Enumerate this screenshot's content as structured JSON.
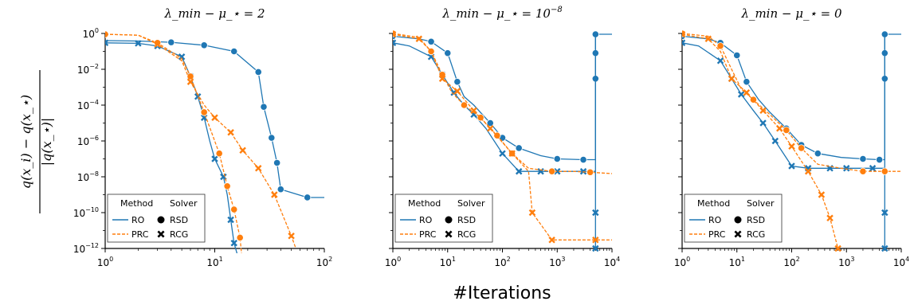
{
  "figure": {
    "xlabel": "#Iterations",
    "ylabel": {
      "numerator": "q(x_i) − q(x_⋆)",
      "denominator": "|q(x_⋆)|"
    }
  },
  "colors": {
    "RO": "#1f77b4",
    "PRC": "#ff7f0e"
  },
  "legend": {
    "method_header": "Method",
    "solver_header": "Solver",
    "methods": [
      "RO",
      "PRC"
    ],
    "solvers": [
      "RSD",
      "RCG"
    ],
    "placement": "lower-left"
  },
  "chart_data": [
    {
      "type": "line",
      "title": "λ_min − μ_⋆ = 2",
      "xscale": "log",
      "yscale": "log",
      "xlim": [
        1,
        100
      ],
      "ylim": [
        1e-12,
        1
      ],
      "xticks": [
        "10^0",
        "10^1",
        "10^2"
      ],
      "yticks": [
        "10^0",
        "10^-2",
        "10^-4",
        "10^-6",
        "10^-8",
        "10^-10",
        "10^-12"
      ],
      "series": [
        {
          "method": "RO",
          "solver": "RSD",
          "x": [
            1,
            2,
            4,
            8,
            15,
            25,
            28,
            33,
            37,
            40,
            70,
            100
          ],
          "y": [
            0.4,
            0.38,
            0.32,
            0.22,
            0.1,
            0.007,
            8e-05,
            1.5e-06,
            6e-08,
            2e-09,
            7e-10,
            7e-10
          ],
          "markers": [
            [
              4,
              0.32
            ],
            [
              8,
              0.22
            ],
            [
              15,
              0.1
            ],
            [
              25,
              0.007
            ],
            [
              28,
              8e-05
            ],
            [
              33,
              1.5e-06
            ],
            [
              37,
              6e-08
            ],
            [
              40,
              2e-09
            ],
            [
              70,
              7e-10
            ]
          ]
        },
        {
          "method": "RO",
          "solver": "RCG",
          "x": [
            1,
            2,
            3,
            5,
            6,
            7,
            8,
            9,
            10,
            12,
            13,
            14,
            15,
            16
          ],
          "y": [
            0.3,
            0.28,
            0.2,
            0.05,
            0.004,
            0.0003,
            2e-05,
            1e-06,
            1e-07,
            1e-08,
            1e-09,
            4e-11,
            2e-12,
            5e-13
          ],
          "markers": [
            [
              1,
              0.3
            ],
            [
              2,
              0.28
            ],
            [
              3,
              0.2
            ],
            [
              5,
              0.05
            ],
            [
              6,
              0.004
            ],
            [
              7,
              0.0003
            ],
            [
              8,
              2e-05
            ],
            [
              10,
              1e-07
            ],
            [
              12,
              1e-08
            ],
            [
              14,
              4e-11
            ],
            [
              15,
              2e-12
            ]
          ]
        },
        {
          "method": "PRC",
          "solver": "RSD",
          "x": [
            1,
            2,
            3,
            5,
            6,
            8,
            11,
            13,
            15,
            17,
            18
          ],
          "y": [
            0.9,
            0.8,
            0.3,
            0.04,
            0.004,
            4e-05,
            2e-07,
            3e-09,
            1.5e-10,
            4e-12,
            1e-13
          ],
          "markers": [
            [
              1,
              0.9
            ],
            [
              3,
              0.3
            ],
            [
              6,
              0.004
            ],
            [
              8,
              4e-05
            ],
            [
              11,
              2e-07
            ],
            [
              13,
              3e-09
            ],
            [
              15,
              1.5e-10
            ],
            [
              17,
              4e-12
            ]
          ]
        },
        {
          "method": "PRC",
          "solver": "RCG",
          "x": [
            1,
            2,
            3,
            5,
            6,
            8,
            10,
            14,
            18,
            25,
            35,
            50,
            55
          ],
          "y": [
            0.9,
            0.8,
            0.25,
            0.03,
            0.002,
            0.0001,
            2e-05,
            3e-06,
            3e-07,
            3e-08,
            1e-09,
            5e-12,
            1e-12
          ],
          "markers": [
            [
              3,
              0.25
            ],
            [
              6,
              0.002
            ],
            [
              10,
              2e-05
            ],
            [
              14,
              3e-06
            ],
            [
              18,
              3e-07
            ],
            [
              25,
              3e-08
            ],
            [
              35,
              1e-09
            ],
            [
              50,
              5e-12
            ]
          ]
        }
      ]
    },
    {
      "type": "line",
      "title": "λ_min − μ_⋆ = 10^-8",
      "xscale": "log",
      "yscale": "log",
      "xlim": [
        1,
        10000
      ],
      "ylim": [
        1e-12,
        1
      ],
      "xticks": [
        "10^0",
        "10^1",
        "10^2",
        "10^3",
        "10^4"
      ],
      "series": [
        {
          "method": "RO",
          "solver": "RSD",
          "x": [
            1,
            3,
            5,
            10,
            15,
            20,
            30,
            60,
            100,
            200,
            500,
            1000,
            3000,
            5000,
            5000,
            5000,
            5000,
            5000,
            5000,
            10000
          ],
          "y": [
            0.7,
            0.5,
            0.35,
            0.08,
            0.002,
            0.0003,
            0.0001,
            1e-05,
            1.5e-06,
            4e-07,
            1.5e-07,
            1e-07,
            9e-08,
            9e-08,
            0.003,
            0.08,
            0.2,
            0.5,
            0.9,
            0.9
          ],
          "markers": [
            [
              1,
              0.7
            ],
            [
              5,
              0.35
            ],
            [
              10,
              0.08
            ],
            [
              15,
              0.002
            ],
            [
              60,
              1e-05
            ],
            [
              100,
              1.5e-06
            ],
            [
              200,
              4e-07
            ],
            [
              1000,
              1e-07
            ],
            [
              3000,
              9e-08
            ],
            [
              5000,
              0.003
            ],
            [
              5000,
              0.08
            ],
            [
              5000,
              0.9
            ]
          ]
        },
        {
          "method": "RO",
          "solver": "RCG",
          "x": [
            1,
            2,
            5,
            8,
            13,
            20,
            30,
            50,
            100,
            200,
            500,
            1000,
            3000,
            5000,
            5000,
            5000,
            5000,
            5000,
            5000
          ],
          "y": [
            0.3,
            0.2,
            0.05,
            0.005,
            0.0005,
            0.0001,
            3e-05,
            5e-06,
            2e-07,
            2e-08,
            2e-08,
            2e-08,
            2e-08,
            2e-08,
            1e-10,
            1e-12,
            0.001,
            0.1,
            1
          ],
          "markers": [
            [
              1,
              0.3
            ],
            [
              5,
              0.05
            ],
            [
              8,
              0.005
            ],
            [
              13,
              0.0005
            ],
            [
              30,
              3e-05
            ],
            [
              100,
              2e-07
            ],
            [
              200,
              2e-08
            ],
            [
              500,
              2e-08
            ],
            [
              1000,
              2e-08
            ],
            [
              3000,
              2e-08
            ],
            [
              5000,
              1e-10
            ],
            [
              5000,
              1e-12
            ]
          ]
        },
        {
          "method": "PRC",
          "solver": "RSD",
          "x": [
            1,
            3,
            5,
            8,
            12,
            20,
            40,
            80,
            150,
            300,
            800,
            2000,
            4000,
            10000
          ],
          "y": [
            1,
            0.6,
            0.1,
            0.005,
            0.0005,
            0.0001,
            2e-05,
            2e-06,
            2e-07,
            3e-08,
            2e-08,
            2e-08,
            1.8e-08,
            1.5e-08
          ],
          "markers": [
            [
              1,
              1
            ],
            [
              5,
              0.1
            ],
            [
              8,
              0.005
            ],
            [
              20,
              0.0001
            ],
            [
              40,
              2e-05
            ],
            [
              80,
              2e-06
            ],
            [
              150,
              2e-07
            ],
            [
              800,
              2e-08
            ],
            [
              4000,
              1.8e-08
            ]
          ]
        },
        {
          "method": "PRC",
          "solver": "RCG",
          "x": [
            1,
            3,
            5,
            8,
            15,
            30,
            60,
            150,
            300,
            350,
            800,
            5000,
            10000
          ],
          "y": [
            0.9,
            0.5,
            0.1,
            0.003,
            0.0006,
            5e-05,
            5e-06,
            2e-07,
            2e-08,
            1e-10,
            3e-12,
            3e-12,
            3e-12
          ],
          "markers": [
            [
              1,
              0.9
            ],
            [
              3,
              0.5
            ],
            [
              8,
              0.003
            ],
            [
              15,
              0.0006
            ],
            [
              30,
              5e-05
            ],
            [
              60,
              5e-06
            ],
            [
              150,
              2e-07
            ],
            [
              350,
              1e-10
            ],
            [
              800,
              3e-12
            ],
            [
              5000,
              3e-12
            ]
          ]
        }
      ]
    },
    {
      "type": "line",
      "title": "λ_min − μ_⋆ = 0",
      "xscale": "log",
      "yscale": "log",
      "xlim": [
        1,
        10000
      ],
      "ylim": [
        1e-12,
        1
      ],
      "xticks": [
        "10^0",
        "10^1",
        "10^2",
        "10^3",
        "10^4"
      ],
      "series": [
        {
          "method": "RO",
          "solver": "RSD",
          "x": [
            1,
            3,
            5,
            10,
            15,
            25,
            40,
            80,
            150,
            300,
            800,
            2000,
            4000,
            5000,
            5000,
            5000,
            5000,
            5000,
            10000
          ],
          "y": [
            0.7,
            0.5,
            0.3,
            0.06,
            0.002,
            0.0002,
            4e-05,
            5e-06,
            6e-07,
            2e-07,
            1.2e-07,
            1e-07,
            9e-08,
            9e-08,
            0.003,
            0.08,
            0.3,
            0.9,
            0.9
          ],
          "markers": [
            [
              1,
              0.7
            ],
            [
              5,
              0.3
            ],
            [
              10,
              0.06
            ],
            [
              15,
              0.002
            ],
            [
              80,
              5e-06
            ],
            [
              150,
              6e-07
            ],
            [
              300,
              2e-07
            ],
            [
              2000,
              1e-07
            ],
            [
              4000,
              9e-08
            ],
            [
              5000,
              0.003
            ],
            [
              5000,
              0.08
            ],
            [
              5000,
              0.9
            ]
          ]
        },
        {
          "method": "RO",
          "solver": "RCG",
          "x": [
            1,
            2,
            5,
            8,
            12,
            20,
            30,
            50,
            100,
            200,
            500,
            1000,
            3000,
            5000,
            5000,
            5000,
            5000,
            5000,
            5000
          ],
          "y": [
            0.3,
            0.2,
            0.03,
            0.003,
            0.0004,
            5e-05,
            1e-05,
            1e-06,
            4e-08,
            3e-08,
            3e-08,
            3e-08,
            3e-08,
            3e-08,
            1e-10,
            1e-12,
            0.001,
            0.1,
            1
          ],
          "markers": [
            [
              1,
              0.3
            ],
            [
              5,
              0.03
            ],
            [
              8,
              0.003
            ],
            [
              12,
              0.0004
            ],
            [
              30,
              1e-05
            ],
            [
              50,
              1e-06
            ],
            [
              100,
              4e-08
            ],
            [
              200,
              3e-08
            ],
            [
              500,
              3e-08
            ],
            [
              1000,
              3e-08
            ],
            [
              3000,
              3e-08
            ],
            [
              5000,
              1e-10
            ],
            [
              5000,
              1e-12
            ]
          ]
        },
        {
          "method": "PRC",
          "solver": "RSD",
          "x": [
            1,
            3,
            5,
            8,
            12,
            20,
            40,
            80,
            150,
            300,
            800,
            2000,
            5000,
            10000
          ],
          "y": [
            1,
            0.7,
            0.2,
            0.01,
            0.0008,
            0.0002,
            3e-05,
            4e-06,
            4e-07,
            5e-08,
            3e-08,
            2e-08,
            2e-08,
            2e-08
          ],
          "markers": [
            [
              1,
              1
            ],
            [
              5,
              0.2
            ],
            [
              20,
              0.0002
            ],
            [
              80,
              4e-06
            ],
            [
              150,
              4e-07
            ],
            [
              2000,
              2e-08
            ],
            [
              5000,
              2e-08
            ]
          ]
        },
        {
          "method": "PRC",
          "solver": "RCG",
          "x": [
            1,
            3,
            5,
            8,
            15,
            30,
            60,
            100,
            200,
            350,
            500,
            700
          ],
          "y": [
            0.9,
            0.5,
            0.1,
            0.003,
            0.0005,
            5e-05,
            5e-06,
            5e-07,
            2e-08,
            1e-09,
            5e-11,
            1e-12
          ],
          "markers": [
            [
              1,
              0.9
            ],
            [
              3,
              0.5
            ],
            [
              8,
              0.003
            ],
            [
              15,
              0.0005
            ],
            [
              30,
              5e-05
            ],
            [
              60,
              5e-06
            ],
            [
              100,
              5e-07
            ],
            [
              200,
              2e-08
            ],
            [
              350,
              1e-09
            ],
            [
              500,
              5e-11
            ],
            [
              700,
              1e-12
            ]
          ]
        }
      ]
    }
  ]
}
